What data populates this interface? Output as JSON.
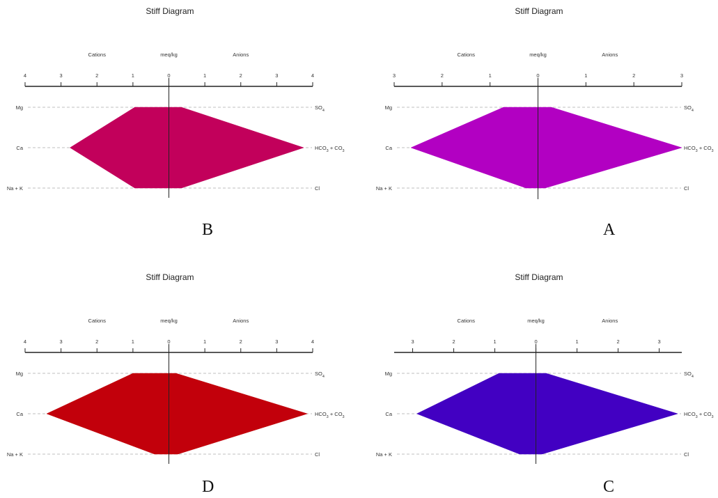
{
  "chart_data": [
    {
      "type": "stiff",
      "panel_label": "B",
      "title": "Stiff Diagram",
      "header": {
        "left": "Cations",
        "center": "meq/kg",
        "right": "Anions"
      },
      "axis": {
        "range": [
          -4,
          4
        ],
        "ticks": [
          "4",
          "3",
          "2",
          "1",
          "0",
          "1",
          "2",
          "3",
          "4"
        ],
        "tick_values": [
          -4,
          -3,
          -2,
          -1,
          0,
          1,
          2,
          3,
          4
        ]
      },
      "cation_labels": [
        "Mg",
        "Ca",
        "Na + K"
      ],
      "anion_labels": [
        "SO4",
        "HCO3 + CO3",
        "Cl"
      ],
      "cations": [
        0.95,
        2.75,
        0.95
      ],
      "anions": [
        0.35,
        3.75,
        0.35
      ],
      "fill": "#C2005B"
    },
    {
      "type": "stiff",
      "panel_label": "A",
      "title": "Stiff Diagram",
      "header": {
        "left": "Cations",
        "center": "meq/kg",
        "right": "Anions"
      },
      "axis": {
        "range": [
          -3,
          3
        ],
        "ticks": [
          "3",
          "2",
          "1",
          "0",
          "1",
          "2",
          "3"
        ],
        "tick_values": [
          -3,
          -2,
          -1,
          0,
          1,
          2,
          3
        ]
      },
      "cation_labels": [
        "Mg",
        "Ca",
        "Na + K"
      ],
      "anion_labels": [
        "SO4",
        "HCO3 + CO3",
        "Cl"
      ],
      "cations": [
        0.72,
        2.65,
        0.25
      ],
      "anions": [
        0.28,
        3.0,
        0.15
      ],
      "fill": "#B200C2"
    },
    {
      "type": "stiff",
      "panel_label": "D",
      "title": "Stiff Diagram",
      "header": {
        "left": "Cations",
        "center": "meq/kg",
        "right": "Anions"
      },
      "axis": {
        "range": [
          -4,
          4
        ],
        "ticks": [
          "4",
          "3",
          "2",
          "1",
          "0",
          "1",
          "2",
          "3",
          "4"
        ],
        "tick_values": [
          -4,
          -3,
          -2,
          -1,
          0,
          1,
          2,
          3,
          4
        ]
      },
      "cation_labels": [
        "Mg",
        "Ca",
        "Na + K"
      ],
      "anion_labels": [
        "SO4",
        "HCO3 + CO3",
        "Cl"
      ],
      "cations": [
        1.0,
        3.4,
        0.4
      ],
      "anions": [
        0.2,
        3.85,
        0.25
      ],
      "fill": "#C2000B"
    },
    {
      "type": "stiff",
      "panel_label": "C",
      "title": "Stiff Diagram",
      "header": {
        "left": "Cations",
        "center": "meq/kg",
        "right": "Anions"
      },
      "axis": {
        "range": [
          -3.45,
          3.55
        ],
        "ticks": [
          "3",
          "2",
          "1",
          "0",
          "1",
          "2",
          "3"
        ],
        "tick_values": [
          -3,
          -2,
          -1,
          0,
          1,
          2,
          3
        ]
      },
      "cation_labels": [
        "Mg",
        "Ca",
        "Na + K"
      ],
      "anion_labels": [
        "SO4",
        "HCO3 + CO3",
        "Cl"
      ],
      "cations": [
        0.9,
        2.9,
        0.4
      ],
      "anions": [
        0.25,
        3.45,
        0.15
      ],
      "fill": "#4200C2"
    }
  ]
}
